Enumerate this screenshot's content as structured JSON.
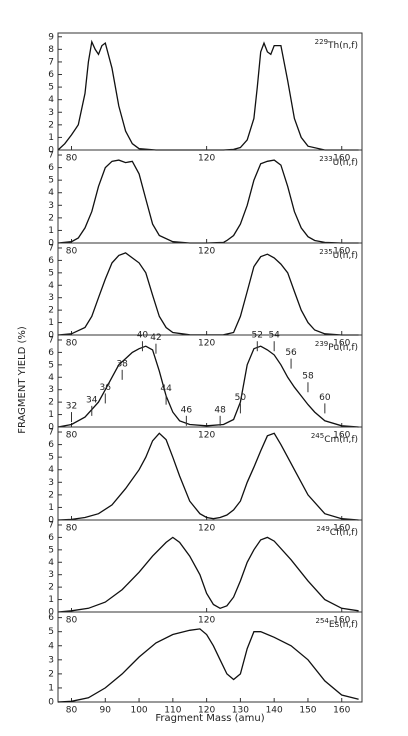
{
  "figure": {
    "y_label": "FRAGMENT YIELD (%)",
    "x_label": "Fragment Mass (amu)"
  },
  "chart_data": [
    {
      "type": "line",
      "isotope": "229",
      "reaction": "Th(n,f)",
      "color": "#111111",
      "x": [
        76,
        78,
        80,
        82,
        84,
        85,
        86,
        87,
        88,
        89,
        90,
        92,
        94,
        96,
        98,
        100,
        105,
        110,
        115,
        120,
        125,
        128,
        130,
        132,
        134,
        135,
        136,
        137,
        138,
        139,
        140,
        142,
        144,
        146,
        148,
        150,
        155,
        160,
        165
      ],
      "values": [
        0,
        0.5,
        1.2,
        2,
        4.5,
        7,
        8.6,
        8,
        7.6,
        8.3,
        8.5,
        6.5,
        3.5,
        1.5,
        0.5,
        0.1,
        0,
        0,
        0,
        0,
        0,
        0.05,
        0.2,
        0.8,
        2.5,
        5,
        7.8,
        8.5,
        7.8,
        7.6,
        8.3,
        8.3,
        5.5,
        2.5,
        1,
        0.3,
        0,
        0,
        0
      ],
      "xlim": [
        76,
        166
      ],
      "ylim": [
        0,
        9.3
      ],
      "xticks": [
        80,
        120,
        160
      ],
      "yticks": [
        0,
        1,
        2,
        3,
        4,
        5,
        6,
        7,
        8,
        9
      ]
    },
    {
      "type": "line",
      "isotope": "233",
      "reaction": "U(n,f)",
      "color": "#111111",
      "x": [
        76,
        80,
        82,
        84,
        86,
        88,
        90,
        92,
        94,
        96,
        98,
        100,
        102,
        104,
        106,
        110,
        115,
        120,
        125,
        126,
        128,
        130,
        132,
        134,
        136,
        138,
        140,
        142,
        144,
        146,
        148,
        150,
        152,
        155,
        160,
        165
      ],
      "values": [
        0,
        0.1,
        0.4,
        1.2,
        2.5,
        4.5,
        6,
        6.5,
        6.6,
        6.4,
        6.5,
        5.5,
        3.5,
        1.5,
        0.6,
        0.1,
        0,
        0,
        0.05,
        0.2,
        0.6,
        1.5,
        3,
        5,
        6.3,
        6.5,
        6.6,
        6.2,
        4.5,
        2.5,
        1.2,
        0.5,
        0.2,
        0.05,
        0,
        0
      ],
      "xlim": [
        76,
        166
      ],
      "ylim": [
        0,
        7.4
      ],
      "xticks": [
        80,
        120,
        160
      ],
      "yticks": [
        0,
        1,
        2,
        3,
        4,
        5,
        6,
        7
      ]
    },
    {
      "type": "line",
      "isotope": "235",
      "reaction": "U(n,f)",
      "color": "#111111",
      "x": [
        76,
        80,
        84,
        86,
        88,
        90,
        92,
        94,
        96,
        98,
        100,
        102,
        104,
        106,
        108,
        110,
        115,
        120,
        125,
        128,
        130,
        132,
        134,
        136,
        138,
        140,
        142,
        144,
        146,
        148,
        150,
        152,
        155,
        160,
        165
      ],
      "values": [
        0,
        0.1,
        0.6,
        1.5,
        3,
        4.5,
        5.8,
        6.4,
        6.6,
        6.2,
        5.8,
        5,
        3.2,
        1.5,
        0.6,
        0.2,
        0.02,
        0.01,
        0.02,
        0.2,
        1.5,
        3.5,
        5.5,
        6.3,
        6.5,
        6.2,
        5.7,
        5,
        3.5,
        2,
        1,
        0.4,
        0.1,
        0,
        0
      ],
      "xlim": [
        76,
        166
      ],
      "ylim": [
        0,
        7.4
      ],
      "xticks": [
        80,
        120,
        160
      ],
      "yticks": [
        0,
        1,
        2,
        3,
        4,
        5,
        6,
        7
      ]
    },
    {
      "type": "line",
      "isotope": "239",
      "reaction": "Pu(n,f)",
      "color": "#111111",
      "x": [
        76,
        80,
        84,
        88,
        90,
        92,
        94,
        96,
        98,
        100,
        102,
        104,
        106,
        108,
        110,
        112,
        115,
        120,
        125,
        128,
        130,
        132,
        134,
        136,
        138,
        140,
        142,
        144,
        146,
        148,
        150,
        152,
        155,
        160,
        165
      ],
      "values": [
        0,
        0.2,
        0.8,
        2,
        3,
        4,
        5,
        5.5,
        6,
        6.3,
        6.5,
        6.2,
        4.5,
        2.5,
        1.2,
        0.5,
        0.2,
        0.1,
        0.2,
        0.6,
        2,
        5,
        6.3,
        6.5,
        6.2,
        5.8,
        5,
        4,
        3.2,
        2.5,
        1.8,
        1.2,
        0.5,
        0.1,
        0
      ],
      "xlim": [
        76,
        166
      ],
      "ylim": [
        0,
        7.4
      ],
      "xticks": [
        80,
        120,
        160
      ],
      "yticks": [
        0,
        1,
        2,
        3,
        4,
        5,
        6,
        7
      ],
      "annotations": [
        {
          "text": "32",
          "x": 80,
          "y": 1.2
        },
        {
          "text": "34",
          "x": 86,
          "y": 1.7
        },
        {
          "text": "36",
          "x": 90,
          "y": 2.7
        },
        {
          "text": "38",
          "x": 95,
          "y": 4.6
        },
        {
          "text": "40",
          "x": 101,
          "y": 6.9
        },
        {
          "text": "42",
          "x": 105,
          "y": 6.7
        },
        {
          "text": "44",
          "x": 108,
          "y": 2.6
        },
        {
          "text": "46",
          "x": 114,
          "y": 0.9
        },
        {
          "text": "48",
          "x": 124,
          "y": 0.9
        },
        {
          "text": "50",
          "x": 130,
          "y": 1.9
        },
        {
          "text": "52",
          "x": 135,
          "y": 6.9
        },
        {
          "text": "54",
          "x": 140,
          "y": 6.9
        },
        {
          "text": "56",
          "x": 145,
          "y": 5.5
        },
        {
          "text": "58",
          "x": 150,
          "y": 3.6
        },
        {
          "text": "60",
          "x": 155,
          "y": 1.9
        }
      ]
    },
    {
      "type": "line",
      "isotope": "245",
      "reaction": "Cm(n,f)",
      "color": "#111111",
      "x": [
        76,
        80,
        84,
        88,
        92,
        96,
        100,
        102,
        104,
        106,
        108,
        110,
        112,
        115,
        118,
        120,
        122,
        124,
        126,
        128,
        130,
        132,
        134,
        136,
        138,
        140,
        142,
        144,
        146,
        150,
        155,
        160,
        165
      ],
      "values": [
        0,
        0.05,
        0.2,
        0.5,
        1.2,
        2.5,
        4,
        5,
        6.3,
        6.9,
        6.4,
        5,
        3.5,
        1.5,
        0.5,
        0.2,
        0.1,
        0.2,
        0.4,
        0.8,
        1.5,
        3,
        4.2,
        5.5,
        6.7,
        6.9,
        6,
        5,
        4,
        2,
        0.5,
        0.1,
        0
      ],
      "xlim": [
        76,
        166
      ],
      "ylim": [
        0,
        7.4
      ],
      "xticks": [
        80,
        120,
        160
      ],
      "yticks": [
        0,
        1,
        2,
        3,
        4,
        5,
        6,
        7
      ]
    },
    {
      "type": "line",
      "isotope": "249",
      "reaction": "Cf(n,f)",
      "color": "#111111",
      "x": [
        76,
        80,
        85,
        90,
        95,
        100,
        104,
        108,
        110,
        112,
        115,
        118,
        120,
        122,
        124,
        126,
        128,
        130,
        132,
        134,
        136,
        138,
        140,
        145,
        150,
        155,
        160,
        165
      ],
      "values": [
        0,
        0.1,
        0.3,
        0.8,
        1.8,
        3.2,
        4.5,
        5.6,
        6,
        5.6,
        4.5,
        3,
        1.5,
        0.6,
        0.3,
        0.5,
        1.2,
        2.5,
        4,
        5,
        5.8,
        6,
        5.7,
        4.2,
        2.5,
        1,
        0.3,
        0.1
      ],
      "xlim": [
        76,
        166
      ],
      "ylim": [
        0,
        7.4
      ],
      "xticks": [
        80,
        120,
        160
      ],
      "yticks": [
        0,
        1,
        2,
        3,
        4,
        5,
        6,
        7
      ]
    },
    {
      "type": "line",
      "isotope": "254",
      "reaction": "Es(n,f)",
      "color": "#111111",
      "x": [
        76,
        80,
        85,
        90,
        95,
        100,
        105,
        110,
        115,
        118,
        120,
        122,
        124,
        126,
        128,
        130,
        132,
        134,
        136,
        140,
        145,
        150,
        155,
        160,
        165
      ],
      "values": [
        0,
        0.05,
        0.3,
        1,
        2,
        3.2,
        4.2,
        4.8,
        5.1,
        5.2,
        4.8,
        4,
        3,
        2,
        1.6,
        2,
        3.8,
        5,
        5,
        4.6,
        4,
        3,
        1.5,
        0.5,
        0.2
      ],
      "xlim": [
        76,
        166
      ],
      "ylim": [
        0,
        6.4
      ],
      "xticks": [
        80,
        90,
        100,
        110,
        120,
        130,
        140,
        150,
        160
      ],
      "yticks": [
        0,
        1,
        2,
        3,
        4,
        5,
        6
      ]
    }
  ]
}
